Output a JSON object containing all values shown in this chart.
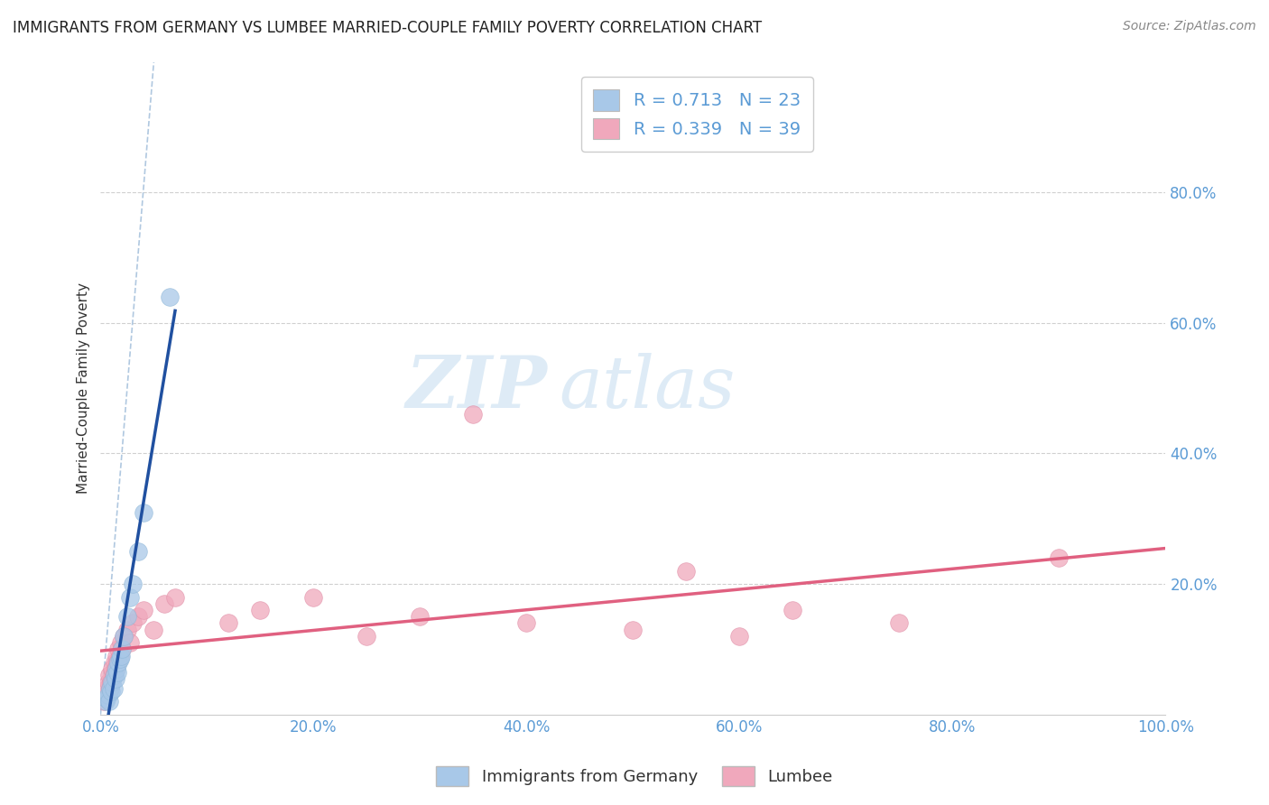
{
  "title": "IMMIGRANTS FROM GERMANY VS LUMBEE MARRIED-COUPLE FAMILY POVERTY CORRELATION CHART",
  "source_text": "Source: ZipAtlas.com",
  "ylabel": "Married-Couple Family Poverty",
  "xlim": [
    0,
    1.0
  ],
  "ylim": [
    0,
    1.0
  ],
  "xtick_labels": [
    "0.0%",
    "20.0%",
    "40.0%",
    "60.0%",
    "80.0%",
    "100.0%"
  ],
  "xtick_positions": [
    0,
    0.2,
    0.4,
    0.6,
    0.8,
    1.0
  ],
  "ytick_labels": [
    "20.0%",
    "40.0%",
    "60.0%",
    "80.0%"
  ],
  "ytick_positions": [
    0.2,
    0.4,
    0.6,
    0.8
  ],
  "background_color": "#ffffff",
  "grid_color": "#d0d0d0",
  "watermark_text1": "ZIP",
  "watermark_text2": "atlas",
  "legend_R1": "R = 0.713",
  "legend_N1": "N = 23",
  "legend_R2": "R = 0.339",
  "legend_N2": "N = 39",
  "legend_label1": "Immigrants from Germany",
  "legend_label2": "Lumbee",
  "scatter_color1": "#a8c8e8",
  "scatter_color2": "#f0a8bc",
  "line_color1": "#2050a0",
  "line_color2": "#e06080",
  "dash_line_color": "#b0c8e0",
  "germany_x": [
    0.005,
    0.006,
    0.007,
    0.008,
    0.009,
    0.01,
    0.011,
    0.012,
    0.013,
    0.014,
    0.015,
    0.016,
    0.017,
    0.018,
    0.019,
    0.02,
    0.022,
    0.025,
    0.028,
    0.03,
    0.035,
    0.04,
    0.065
  ],
  "germany_y": [
    0.02,
    0.025,
    0.03,
    0.02,
    0.04,
    0.035,
    0.05,
    0.04,
    0.06,
    0.055,
    0.07,
    0.065,
    0.08,
    0.085,
    0.09,
    0.1,
    0.12,
    0.15,
    0.18,
    0.2,
    0.25,
    0.31,
    0.64
  ],
  "lumbee_x": [
    0.003,
    0.005,
    0.006,
    0.007,
    0.008,
    0.009,
    0.01,
    0.011,
    0.012,
    0.013,
    0.014,
    0.015,
    0.016,
    0.017,
    0.018,
    0.019,
    0.02,
    0.022,
    0.025,
    0.028,
    0.03,
    0.035,
    0.04,
    0.05,
    0.06,
    0.07,
    0.12,
    0.15,
    0.2,
    0.25,
    0.3,
    0.35,
    0.4,
    0.5,
    0.55,
    0.6,
    0.65,
    0.75,
    0.9
  ],
  "lumbee_y": [
    0.02,
    0.03,
    0.04,
    0.05,
    0.06,
    0.04,
    0.05,
    0.07,
    0.06,
    0.08,
    0.07,
    0.09,
    0.08,
    0.1,
    0.09,
    0.11,
    0.1,
    0.12,
    0.13,
    0.11,
    0.14,
    0.15,
    0.16,
    0.13,
    0.17,
    0.18,
    0.14,
    0.16,
    0.18,
    0.12,
    0.15,
    0.46,
    0.14,
    0.13,
    0.22,
    0.12,
    0.16,
    0.14,
    0.24
  ],
  "title_fontsize": 12,
  "axis_tick_fontsize": 12,
  "axis_tick_color": "#5b9bd5",
  "ylabel_fontsize": 11
}
